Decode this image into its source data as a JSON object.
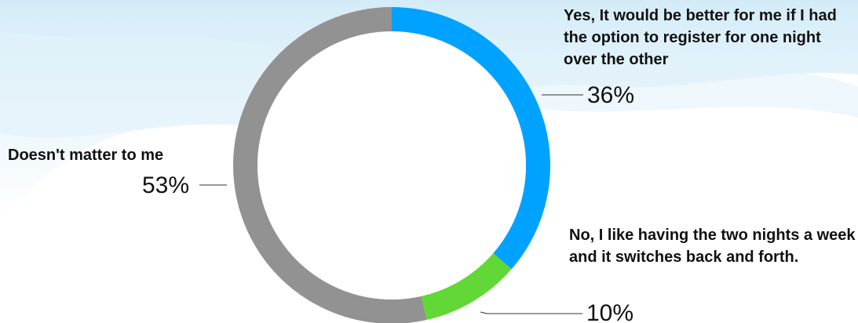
{
  "chart_data": {
    "type": "pie",
    "donut": true,
    "title": "",
    "slices": [
      {
        "label": "Yes, It would be better for me if I had the option to register for one night over the other",
        "value": 36,
        "display": "36%",
        "color": "#00a2ff"
      },
      {
        "label": "No, I like having the two nights a week and it switches back and forth.",
        "value": 10,
        "display": "10%",
        "color": "#61d836"
      },
      {
        "label": "Doesn't matter to me",
        "value": 53,
        "display": "53%",
        "color": "#929292"
      }
    ]
  }
}
